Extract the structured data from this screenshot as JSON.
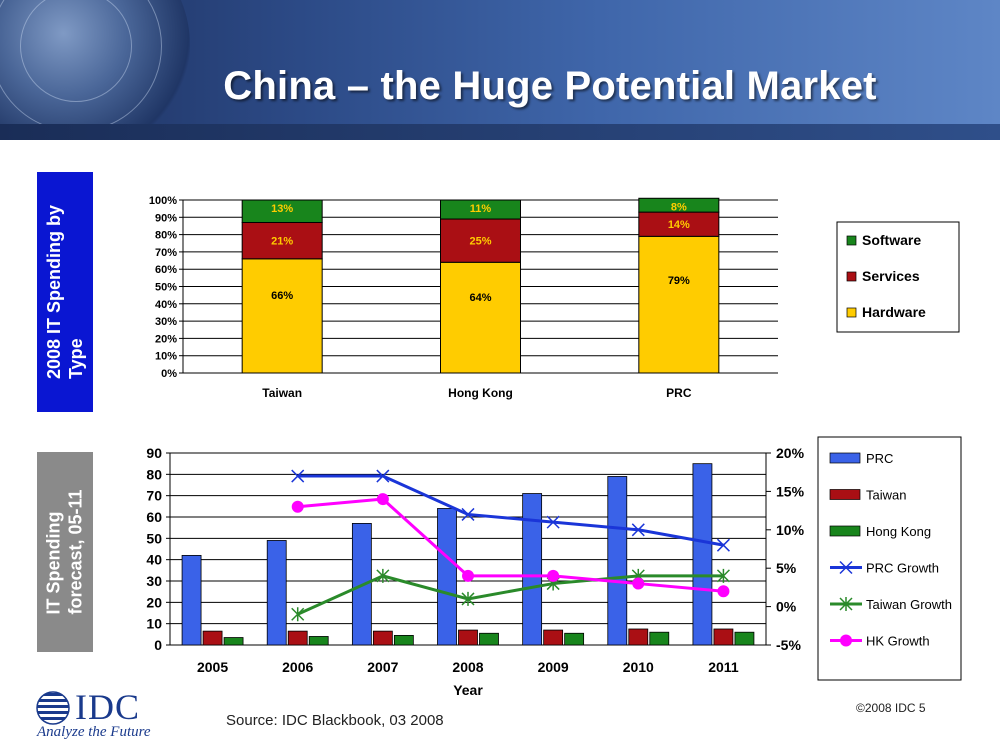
{
  "slide": {
    "title": "China – the Huge Potential Market",
    "label_top": "2008 IT Spending by\nType",
    "label_bottom": "IT Spending\nforecast, 05-11",
    "source": "Source: IDC Blackbook, 03 2008",
    "copyright": "©2008 IDC   5",
    "logo_text": "IDC",
    "logo_tagline": "Analyze the Future"
  },
  "colors": {
    "hardware": "#ffcc00",
    "services": "#aa0f14",
    "software": "#18851c",
    "prc": "#3a62e8",
    "taiwan": "#aa0f14",
    "hongkong": "#18851c",
    "prc_growth": "#1a35d8",
    "taiwan_growth": "#2a8a2a",
    "hk_growth": "#ff00ff"
  },
  "chart_data": [
    {
      "type": "bar",
      "stacked": true,
      "percent": true,
      "categories": [
        "Taiwan",
        "Hong Kong",
        "PRC"
      ],
      "series": [
        {
          "name": "Hardware",
          "values": [
            66,
            64,
            79
          ],
          "labels": [
            "66%",
            "64%",
            "79%"
          ]
        },
        {
          "name": "Services",
          "values": [
            21,
            25,
            14
          ],
          "labels": [
            "21%",
            "25%",
            "14%"
          ]
        },
        {
          "name": "Software",
          "values": [
            13,
            11,
            8
          ],
          "labels": [
            "13%",
            "11%",
            "8%"
          ]
        }
      ],
      "ylim": [
        0,
        100
      ],
      "yticks": [
        "0%",
        "10%",
        "20%",
        "30%",
        "40%",
        "50%",
        "60%",
        "70%",
        "80%",
        "90%",
        "100%"
      ],
      "grid": true,
      "legend": "right",
      "legend_order": [
        "Software",
        "Services",
        "Hardware"
      ]
    },
    {
      "type": "bar",
      "categories": [
        "2005",
        "2006",
        "2007",
        "2008",
        "2009",
        "2010",
        "2011"
      ],
      "xlabel": "Year",
      "series": [
        {
          "name": "PRC",
          "kind": "bar",
          "axis": "left",
          "values": [
            42,
            49,
            57,
            64,
            71,
            79,
            85
          ]
        },
        {
          "name": "Taiwan",
          "kind": "bar",
          "axis": "left",
          "values": [
            6.5,
            6.5,
            6.5,
            7,
            7,
            7.5,
            7.5
          ]
        },
        {
          "name": "Hong Kong",
          "kind": "bar",
          "axis": "left",
          "values": [
            3.5,
            4,
            4.5,
            5.5,
            5.5,
            6,
            6
          ]
        },
        {
          "name": "PRC Growth",
          "kind": "line",
          "marker": "x",
          "axis": "right",
          "values": [
            null,
            17,
            17,
            12,
            11,
            10,
            8
          ]
        },
        {
          "name": "Taiwan Growth",
          "kind": "line",
          "marker": "star",
          "axis": "right",
          "values": [
            null,
            -1,
            4,
            1,
            3,
            4,
            4
          ]
        },
        {
          "name": "HK Growth",
          "kind": "line",
          "marker": "circle",
          "axis": "right",
          "values": [
            null,
            13,
            14,
            4,
            4,
            3,
            2
          ]
        }
      ],
      "ylim_left": [
        0,
        90
      ],
      "yticks_left": [
        "0",
        "10",
        "20",
        "30",
        "40",
        "50",
        "60",
        "70",
        "80",
        "90"
      ],
      "ylim_right": [
        -5,
        20
      ],
      "yticks_right": [
        "-5%",
        "0%",
        "5%",
        "10%",
        "15%",
        "20%"
      ],
      "grid": true,
      "legend": "right"
    }
  ]
}
